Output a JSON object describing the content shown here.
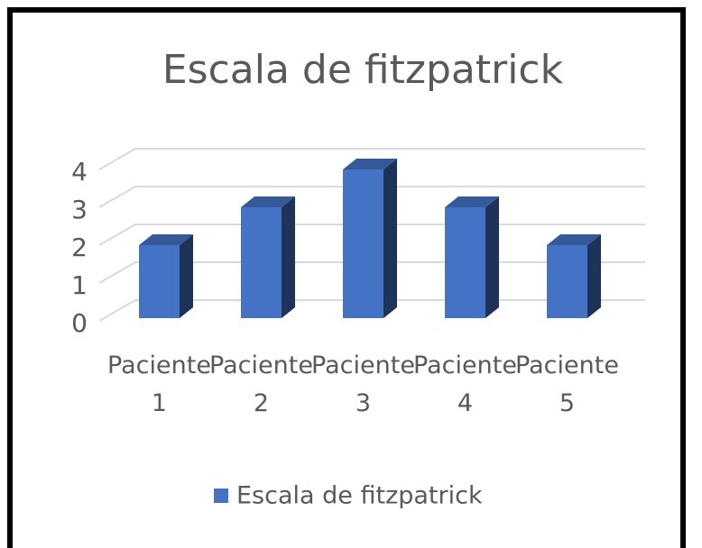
{
  "chart_data": {
    "type": "bar3d",
    "title": "Escala de fitzpatrick",
    "categories": [
      "Paciente 1",
      "Paciente 2",
      "Paciente 3",
      "Paciente 4",
      "Paciente 5"
    ],
    "series": [
      {
        "name": "Escala de fitzpatrick",
        "color": "#4472c4",
        "values": [
          2,
          3,
          4,
          3,
          2
        ]
      }
    ],
    "ylim": [
      0,
      4
    ],
    "yticks": [
      0,
      1,
      2,
      3,
      4
    ],
    "grid": true,
    "legend": "bottom"
  }
}
